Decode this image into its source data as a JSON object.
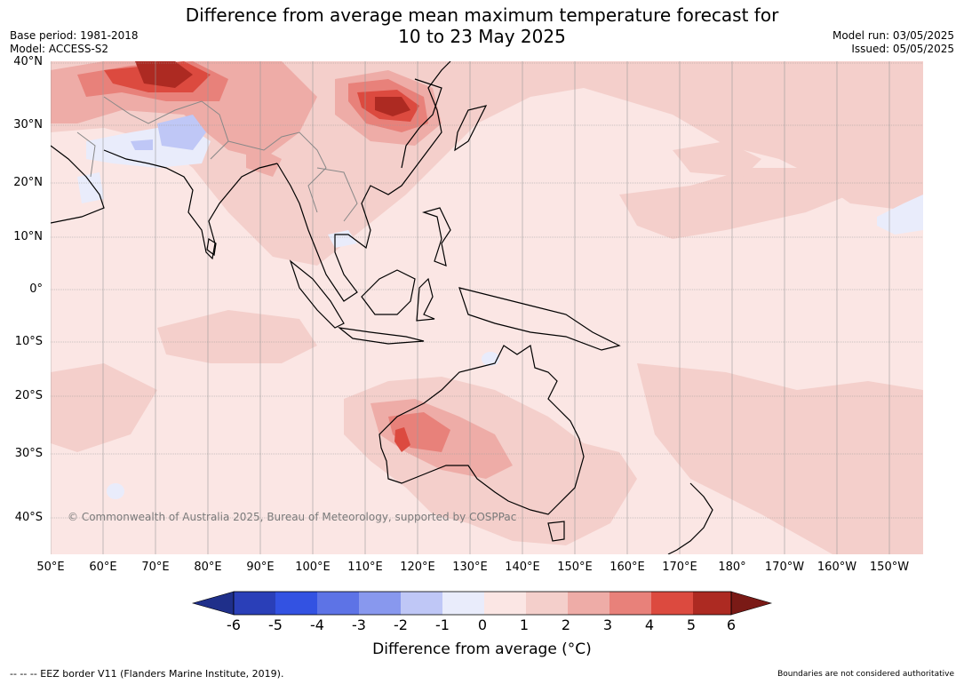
{
  "header": {
    "title_line1": "Difference from average mean maximum temperature forecast for",
    "title_line2": "10 to 23 May 2025",
    "base_period": "Base period: 1981-2018",
    "model": "Model: ACCESS-S2",
    "model_run": "Model run: 03/05/2025",
    "issued": "Issued: 05/05/2025"
  },
  "axes": {
    "lat_labels": [
      "40°N",
      "30°N",
      "20°N",
      "10°N",
      "0°",
      "10°S",
      "20°S",
      "30°S",
      "40°S"
    ],
    "lon_labels": [
      "50°E",
      "60°E",
      "70°E",
      "80°E",
      "90°E",
      "100°E",
      "110°E",
      "120°E",
      "130°E",
      "140°E",
      "150°E",
      "160°E",
      "170°E",
      "180°",
      "170°W",
      "160°W",
      "150°W"
    ]
  },
  "map": {
    "copyright": "© Commonwealth of Australia 2025, Bureau of Meteorology, supported by COSPPac",
    "background_color": "#fbe6e4",
    "coast_color": "#000000",
    "border_color": "#888888"
  },
  "colorbar": {
    "ticks": [
      "-6",
      "-5",
      "-4",
      "-3",
      "-2",
      "-1",
      "0",
      "1",
      "2",
      "3",
      "4",
      "5",
      "6"
    ],
    "colors": [
      "#1f2f8a",
      "#2a3fb8",
      "#3352e2",
      "#5d73e6",
      "#8898ee",
      "#bfc7f6",
      "#e9ecfb",
      "#fbe6e4",
      "#f4cfcb",
      "#eeaca7",
      "#e8817a",
      "#dc4a3f",
      "#ad2a22",
      "#7a1a16"
    ],
    "title": "Difference from average (°C)"
  },
  "footer": {
    "eez": "--  --  -- EEZ border V11 (Flanders Marine Institute, 2019).",
    "boundaries": "Boundaries are not considered authoritative"
  }
}
